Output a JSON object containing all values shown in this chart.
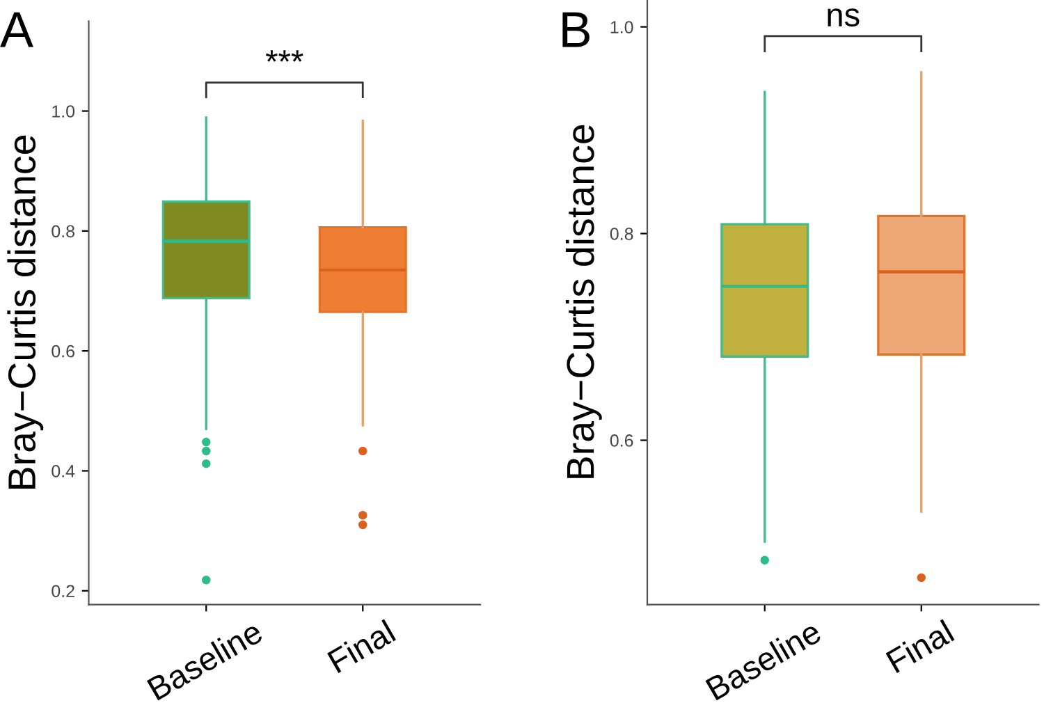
{
  "chart_data": [
    {
      "type": "box",
      "title": "A",
      "ylabel": "Bray−Curtis distance",
      "categories": [
        "Baseline",
        "Final"
      ],
      "boxes": [
        {
          "low": 0.47,
          "q1": 0.688,
          "median": 0.783,
          "q3": 0.849,
          "high": 0.989,
          "outliers": [
            0.448,
            0.433,
            0.412,
            0.218
          ]
        },
        {
          "low": 0.476,
          "q1": 0.665,
          "median": 0.735,
          "q3": 0.806,
          "high": 0.984,
          "outliers": [
            0.433,
            0.326,
            0.31
          ]
        }
      ],
      "colors": [
        "#7f8a22",
        "#ef7d33"
      ],
      "ylim": [
        0.177,
        1.15
      ],
      "yticks": [
        {
          "value": 0.2,
          "label": "0.2"
        },
        {
          "value": 0.4,
          "label": "0.4"
        },
        {
          "value": 0.6,
          "label": "0.6"
        },
        {
          "value": 0.8,
          "label": "0.8"
        },
        {
          "value": 1.0,
          "label": "1.0"
        }
      ],
      "annotations": [
        "***"
      ],
      "grid": false,
      "legend": false
    },
    {
      "type": "box",
      "title": "B",
      "ylabel": "Bray−Curtis distance",
      "categories": [
        "Baseline",
        "Final"
      ],
      "boxes": [
        {
          "low": 0.502,
          "q1": 0.681,
          "median": 0.749,
          "q3": 0.809,
          "high": 0.937,
          "outliers": [
            0.484
          ]
        },
        {
          "low": 0.531,
          "q1": 0.683,
          "median": 0.763,
          "q3": 0.817,
          "high": 0.956,
          "outliers": [
            0.467
          ]
        }
      ],
      "colors": [
        "#c0b040",
        "#eda878"
      ],
      "ylim": [
        0.441,
        1.026
      ],
      "yticks": [
        {
          "value": 0.6,
          "label": "0.6"
        },
        {
          "value": 0.8,
          "label": "0.8"
        },
        {
          "value": 1.0,
          "label": "1.0"
        }
      ],
      "annotations": [
        "ns"
      ],
      "grid": false,
      "legend": false
    }
  ]
}
